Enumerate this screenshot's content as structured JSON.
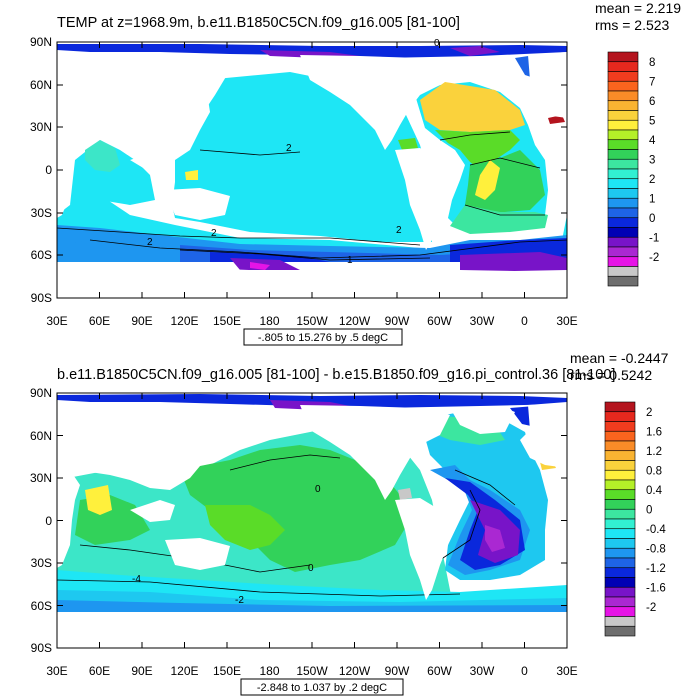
{
  "panels": [
    {
      "title": "TEMP at z=1968.9m, b.e11.B1850C5CN.f09_g16.005 [81-100]",
      "mean_label": "mean = 2.219",
      "rms_label": "rms = 2.523",
      "range_label": "-.805 to 15.276 by .5 degC",
      "lat_ticks": [
        "90N",
        "60N",
        "30N",
        "0",
        "30S",
        "60S",
        "90S"
      ],
      "lon_ticks": [
        "30E",
        "60E",
        "90E",
        "120E",
        "150E",
        "180",
        "150W",
        "120W",
        "90W",
        "60W",
        "30W",
        "0",
        "30E"
      ],
      "colorbar": {
        "labels": [
          "8",
          "7",
          "6",
          "5",
          "4",
          "3",
          "2",
          "1",
          "0",
          "-1",
          "-2"
        ],
        "colors": [
          "#b4141e",
          "#e6281e",
          "#f03c1e",
          "#fa641e",
          "#fa8c28",
          "#fab432",
          "#fad23c",
          "#fff03c",
          "#b4f028",
          "#5adc28",
          "#32d25a",
          "#3ce6a0",
          "#32f0d2",
          "#1ee6f5",
          "#1ec8f0",
          "#1e96f0",
          "#1e64e6",
          "#0a28dc",
          "#0000b4",
          "#7814c8",
          "#aa28d2",
          "#e614e6",
          "#c8c8c8",
          "#6e6e6e"
        ]
      },
      "chart_data": {
        "type": "heatmap",
        "title": "TEMP at z=1968.9m, b.e11.B1850C5CN.f09_g16.005 [81-100]",
        "xlabel": "",
        "ylabel": "",
        "x_ticks": [
          "30E",
          "60E",
          "90E",
          "120E",
          "150E",
          "180",
          "150W",
          "120W",
          "90W",
          "60W",
          "30W",
          "0",
          "30E"
        ],
        "y_ticks": [
          "90N",
          "60N",
          "30N",
          "0",
          "30S",
          "60S",
          "90S"
        ],
        "xlim": [
          30,
          390
        ],
        "ylim": [
          -90,
          90
        ],
        "contour_levels": [
          -2,
          -1.5,
          -1,
          -0.5,
          0,
          0.5,
          1,
          1.5,
          2,
          2.5,
          3,
          3.5,
          4,
          4.5,
          5,
          5.5,
          6,
          6.5,
          7,
          7.5,
          8
        ],
        "mean": 2.219,
        "rms": 2.523,
        "range": {
          "min": -0.805,
          "max": 15.276,
          "interval": 0.5,
          "units": "degC"
        }
      }
    },
    {
      "title": "b.e11.B1850C5CN.f09_g16.005 [81-100] - b.e15.B1850.f09_g16.pi_control.36 [81-100]",
      "mean_label": "mean = -0.2447",
      "rms_label": "rms = 0.5242",
      "range_label": "-2.848 to 1.037 by .2 degC",
      "lat_ticks": [
        "90N",
        "60N",
        "30N",
        "0",
        "30S",
        "60S",
        "90S"
      ],
      "lon_ticks": [
        "30E",
        "60E",
        "90E",
        "120E",
        "150E",
        "180",
        "150W",
        "120W",
        "90W",
        "60W",
        "30W",
        "0",
        "30E"
      ],
      "colorbar": {
        "labels": [
          "2",
          "1.6",
          "1.2",
          "0.8",
          "0.4",
          "0",
          "-0.4",
          "-0.8",
          "-1.2",
          "-1.6",
          "-2"
        ],
        "colors": [
          "#b4141e",
          "#e6281e",
          "#f03c1e",
          "#fa641e",
          "#fa8c28",
          "#fab432",
          "#fad23c",
          "#fff03c",
          "#b4f028",
          "#5adc28",
          "#32d25a",
          "#3ce6a0",
          "#32f0d2",
          "#1ee6f5",
          "#1ec8f0",
          "#1e96f0",
          "#1e64e6",
          "#0a28dc",
          "#0000b4",
          "#7814c8",
          "#aa28d2",
          "#e614e6",
          "#c8c8c8",
          "#6e6e6e"
        ]
      },
      "chart_data": {
        "type": "heatmap",
        "title": "b.e11.B1850C5CN.f09_g16.005 [81-100] - b.e15.B1850.f09_g16.pi_control.36 [81-100]",
        "xlabel": "",
        "ylabel": "",
        "x_ticks": [
          "30E",
          "60E",
          "90E",
          "120E",
          "150E",
          "180",
          "150W",
          "120W",
          "90W",
          "60W",
          "30W",
          "0",
          "30E"
        ],
        "y_ticks": [
          "90N",
          "60N",
          "30N",
          "0",
          "30S",
          "60S",
          "90S"
        ],
        "xlim": [
          30,
          390
        ],
        "ylim": [
          -90,
          90
        ],
        "contour_levels": [
          -2,
          -1.8,
          -1.6,
          -1.4,
          -1.2,
          -1,
          -0.8,
          -0.6,
          -0.4,
          -0.2,
          0,
          0.2,
          0.4,
          0.6,
          0.8,
          1,
          1.2,
          1.4,
          1.6,
          1.8,
          2
        ],
        "mean": -0.2447,
        "rms": 0.5242,
        "range": {
          "min": -2.848,
          "max": 1.037,
          "interval": 0.2,
          "units": "degC"
        }
      }
    }
  ]
}
